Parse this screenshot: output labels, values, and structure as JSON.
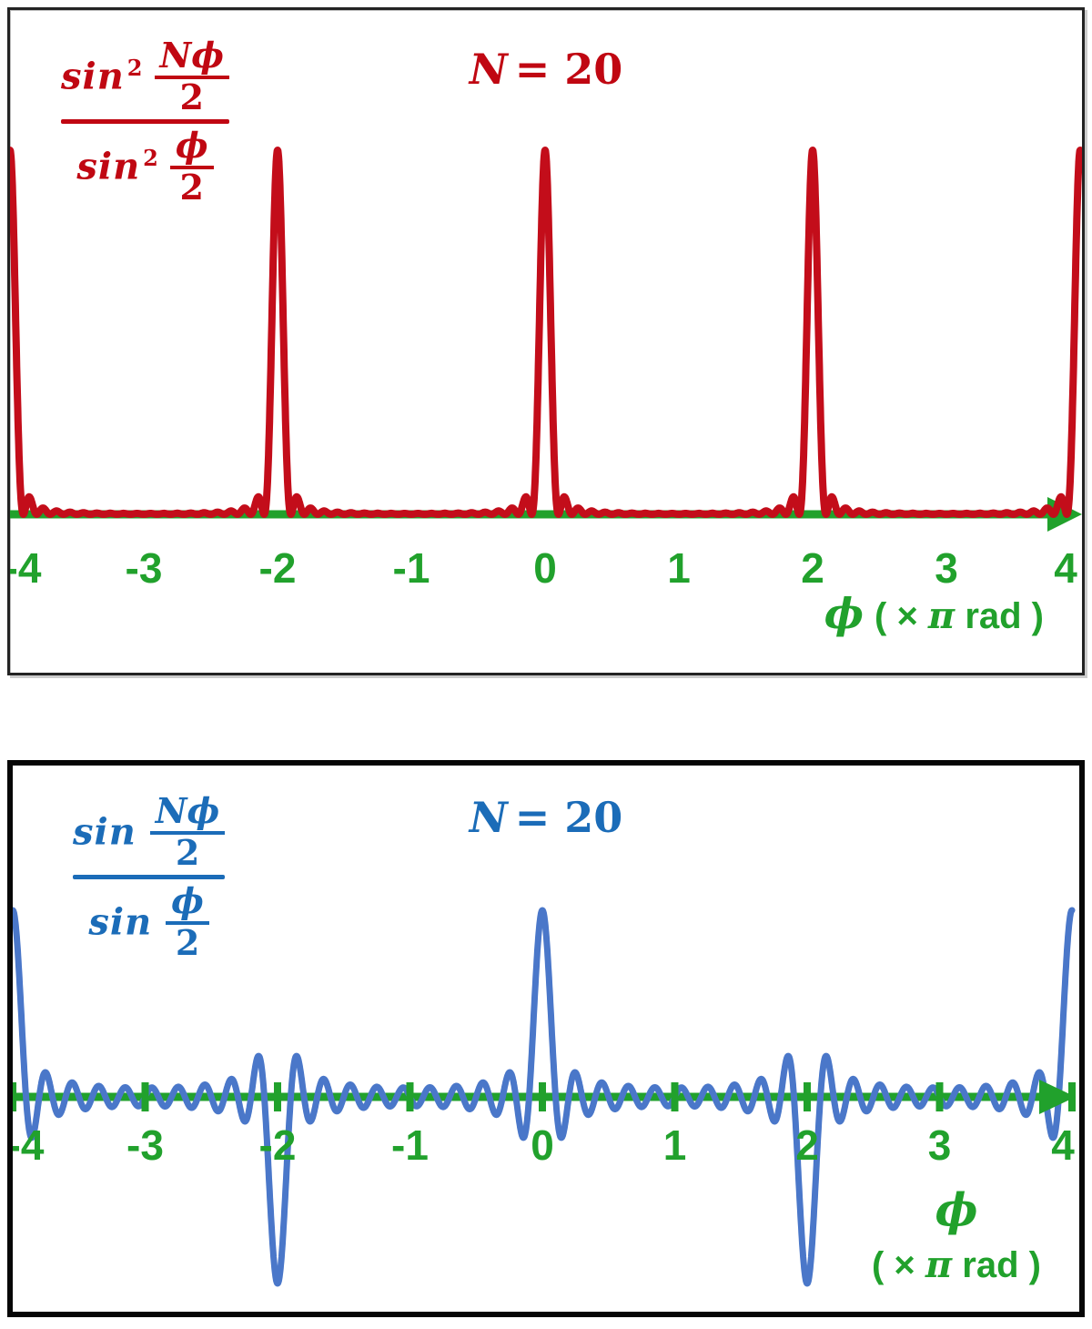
{
  "chart_data": [
    {
      "type": "line",
      "panel": "top",
      "title": "N = 20",
      "title_var": "N",
      "title_eq": "= 20",
      "formula": {
        "numerator": {
          "fn": "sin",
          "exp": "2",
          "frac_top": "Nϕ",
          "frac_bot": "2"
        },
        "denominator": {
          "fn": "sin",
          "exp": "2",
          "frac_top": "ϕ",
          "frac_bot": "2"
        }
      },
      "function": "sin^2(N*phi/2) / sin^2(phi/2)",
      "N": 20,
      "x_min": -4,
      "x_max": 4,
      "x_unit": "pi rad",
      "y_min": 0,
      "y_max": 400,
      "peak_positions_pi": [
        -4,
        -2,
        0,
        2,
        4
      ],
      "peak_value": 400,
      "zero_spacing_pi": 0.1,
      "x_ticks": [
        "-4",
        "-3",
        "-2",
        "-1",
        "0",
        "1",
        "2",
        "3",
        "4"
      ],
      "x_label": {
        "symbol": "ϕ",
        "unit_prefix": "( × ",
        "unit_pi": "π",
        "unit_suffix": " rad )"
      },
      "grid": false,
      "y_axis_visible": false,
      "axis_tick_marks_visible": false,
      "curve_color": "#c30d1a",
      "text_color": "#c00712",
      "axis_color": "#21a12c"
    },
    {
      "type": "line",
      "panel": "bottom",
      "title": "N = 20",
      "title_var": "N",
      "title_eq": "= 20",
      "formula": {
        "numerator": {
          "fn": "sin",
          "exp": "",
          "frac_top": "Nϕ",
          "frac_bot": "2"
        },
        "denominator": {
          "fn": "sin",
          "exp": "",
          "frac_top": "ϕ",
          "frac_bot": "2"
        }
      },
      "function": "sin(N*phi/2) / sin(phi/2)",
      "N": 20,
      "x_min": -4,
      "x_max": 4,
      "x_unit": "pi rad",
      "y_min": -20,
      "y_max": 20,
      "maxima_positions_pi": [
        -4,
        0,
        4
      ],
      "maxima_value": 20,
      "minima_positions_pi": [
        -2,
        2
      ],
      "minima_value": -20,
      "zero_spacing_pi": 0.1,
      "x_ticks": [
        "-4",
        "-3",
        "-2",
        "-1",
        "0",
        "1",
        "2",
        "3",
        "4"
      ],
      "x_label": {
        "symbol": "ϕ",
        "unit_prefix": "( × ",
        "unit_pi": "π",
        "unit_suffix": " rad )"
      },
      "grid": false,
      "y_axis_visible": false,
      "axis_tick_marks_visible": true,
      "curve_color": "#4a77c9",
      "text_color": "#1b6cb8",
      "axis_color": "#21a12c"
    }
  ]
}
